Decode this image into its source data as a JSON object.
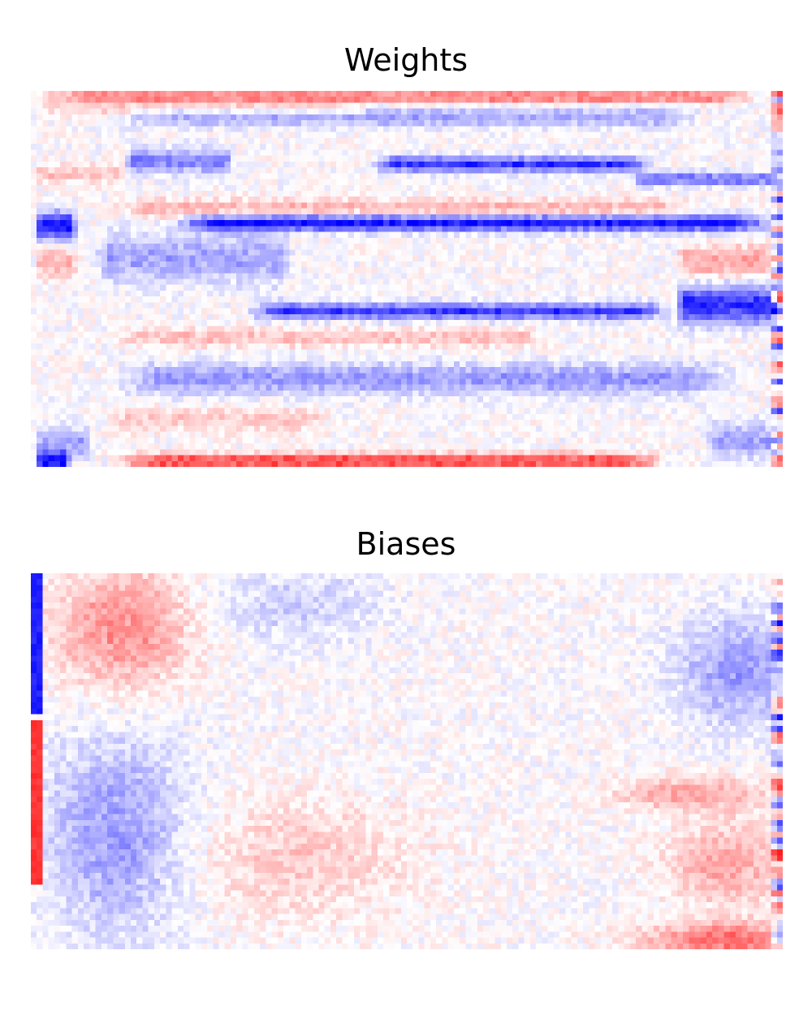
{
  "chart_data": [
    {
      "type": "heatmap",
      "title": "Weights",
      "axes": "off",
      "grid": false,
      "colormap": "bwr",
      "colors": {
        "negative": "#0000ff",
        "zero": "#ffffff",
        "positive": "#ff0000"
      },
      "value_range": [
        -1,
        1
      ],
      "cols": 128,
      "rows": 64,
      "bands": [
        {
          "row": 0.5,
          "width": 1.0,
          "value": 0.55,
          "x_start": 0.0,
          "x_end": 0.98
        },
        {
          "row": 2.5,
          "width": 1.2,
          "value": 0.2,
          "x_start": 0.0,
          "x_end": 0.45
        },
        {
          "row": 4.0,
          "width": 1.5,
          "value": -0.35,
          "x_start": 0.1,
          "x_end": 0.9
        },
        {
          "row": 11.5,
          "width": 2.0,
          "value": -0.5,
          "x_start": 0.12,
          "x_end": 0.27
        },
        {
          "row": 12.0,
          "width": 1.2,
          "value": -0.8,
          "x_start": 0.45,
          "x_end": 0.83
        },
        {
          "row": 13.5,
          "width": 1.5,
          "value": 0.25,
          "x_start": 0.0,
          "x_end": 0.12
        },
        {
          "row": 14.5,
          "width": 1.0,
          "value": -0.6,
          "x_start": 0.8,
          "x_end": 1.0
        },
        {
          "row": 19.5,
          "width": 1.5,
          "value": 0.3,
          "x_start": 0.1,
          "x_end": 0.9
        },
        {
          "row": 22.0,
          "width": 1.3,
          "value": -0.95,
          "x_start": 0.18,
          "x_end": 1.0
        },
        {
          "row": 22.5,
          "width": 2.2,
          "value": -0.95,
          "x_start": 0.0,
          "x_end": 0.06
        },
        {
          "row": 28.0,
          "width": 4.0,
          "value": -0.35,
          "x_start": 0.08,
          "x_end": 0.35
        },
        {
          "row": 29.0,
          "width": 2.5,
          "value": 0.3,
          "x_start": 0.0,
          "x_end": 0.06
        },
        {
          "row": 28.5,
          "width": 2.5,
          "value": 0.35,
          "x_start": 0.86,
          "x_end": 1.0
        },
        {
          "row": 37.0,
          "width": 1.3,
          "value": -0.75,
          "x_start": 0.28,
          "x_end": 0.86
        },
        {
          "row": 36.0,
          "width": 3.0,
          "value": -0.85,
          "x_start": 0.86,
          "x_end": 1.0
        },
        {
          "row": 41.5,
          "width": 1.5,
          "value": 0.25,
          "x_start": 0.1,
          "x_end": 0.7
        },
        {
          "row": 48.5,
          "width": 2.5,
          "value": -0.4,
          "x_start": 0.1,
          "x_end": 0.95
        },
        {
          "row": 55.5,
          "width": 2.0,
          "value": 0.2,
          "x_start": 0.1,
          "x_end": 0.4
        },
        {
          "row": 59.5,
          "width": 2.5,
          "value": -0.35,
          "x_start": 0.0,
          "x_end": 0.08
        },
        {
          "row": 59.0,
          "width": 3.0,
          "value": -0.35,
          "x_start": 0.9,
          "x_end": 1.0
        },
        {
          "row": 62.5,
          "width": 1.2,
          "value": 0.75,
          "x_start": 0.1,
          "x_end": 0.85
        },
        {
          "row": 62.5,
          "width": 1.5,
          "value": -0.95,
          "x_start": 0.0,
          "x_end": 0.05
        }
      ]
    },
    {
      "type": "heatmap",
      "title": "Biases",
      "axes": "off",
      "grid": false,
      "colormap": "bwr",
      "colors": {
        "negative": "#0000ff",
        "zero": "#ffffff",
        "positive": "#ff0000"
      },
      "value_range": [
        -1,
        1
      ],
      "cols": 128,
      "rows": 64,
      "blobs": [
        {
          "col": 15,
          "row": 9,
          "rx": 11,
          "ry": 10,
          "value": 0.45
        },
        {
          "col": 14,
          "row": 44,
          "rx": 12,
          "ry": 16,
          "value": -0.4
        },
        {
          "col": 45,
          "row": 5,
          "rx": 14,
          "ry": 6,
          "value": -0.2
        },
        {
          "col": 45,
          "row": 48,
          "rx": 20,
          "ry": 10,
          "value": 0.2
        },
        {
          "col": 120,
          "row": 16,
          "rx": 10,
          "ry": 9,
          "value": -0.4
        },
        {
          "col": 112,
          "row": 37,
          "rx": 12,
          "ry": 3,
          "value": 0.35
        },
        {
          "col": 118,
          "row": 49,
          "rx": 10,
          "ry": 7,
          "value": 0.35
        },
        {
          "col": 118,
          "row": 62,
          "rx": 14,
          "ry": 3,
          "value": 0.55
        }
      ],
      "edge_bars": [
        {
          "col_start": 0,
          "col_end": 1,
          "row_start": 0,
          "row_end": 23,
          "value": -0.95
        },
        {
          "col_start": 0,
          "col_end": 1,
          "row_start": 25,
          "row_end": 52,
          "value": 0.85
        }
      ]
    }
  ]
}
